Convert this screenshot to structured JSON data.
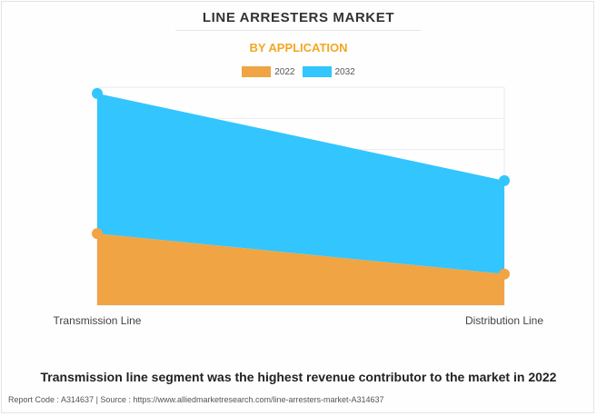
{
  "title": "LINE ARRESTERS MARKET",
  "subtitle": "BY APPLICATION",
  "colors": {
    "2022": "#f0a444",
    "2032": "#33c5fd",
    "subtitle": "#f5a623"
  },
  "chart_data": {
    "type": "area",
    "categories": [
      "Transmission Line",
      "Distribution Line"
    ],
    "series": [
      {
        "name": "2022",
        "values": [
          2.3,
          1.0
        ]
      },
      {
        "name": "2032",
        "values": [
          6.8,
          4.0
        ]
      }
    ],
    "ylim": [
      0,
      7
    ],
    "grid": true,
    "legend": "top-center"
  },
  "headline": "Transmission line segment was the highest revenue contributor to the market in 2022",
  "source": "Report Code : A314637  |  Source : https://www.alliedmarketresearch.com/line-arresters-market-A314637"
}
